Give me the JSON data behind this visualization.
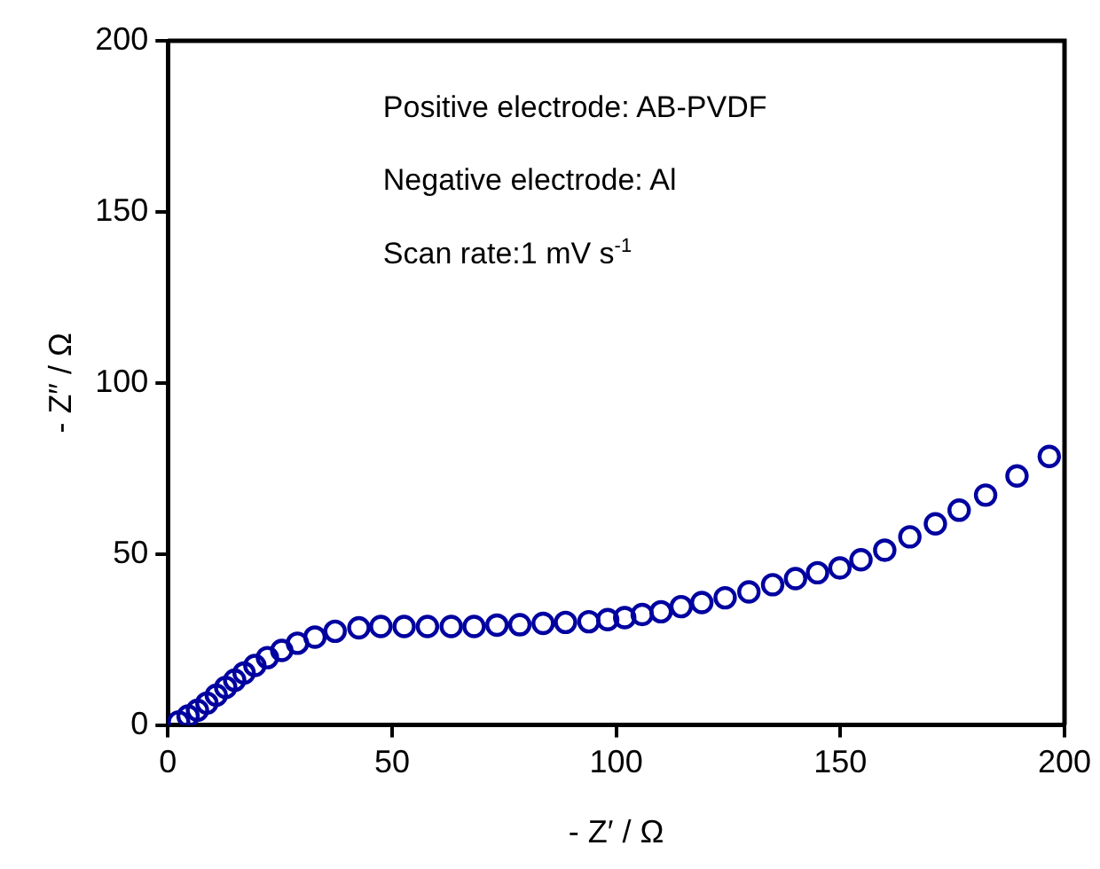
{
  "chart_data": {
    "type": "scatter",
    "xlabel": "- Z′ / Ω",
    "ylabel": "- Z″ / Ω",
    "xlim": [
      0,
      200
    ],
    "xticks": [
      0,
      50,
      100,
      150,
      200
    ],
    "ylim": [
      0,
      200
    ],
    "yticks": [
      0,
      50,
      100,
      150,
      200
    ],
    "grid": false,
    "legend": false,
    "marker": "circle",
    "annotations": [
      "Positive electrode: AB-PVDF",
      "Negative electrode: Al",
      "Scan rate:1 mV s$^{-1}$"
    ],
    "series": [
      {
        "color": "#0000a0",
        "x": [
          2.4,
          4.5,
          6.6,
          8.7,
          10.8,
          12.9,
          14.9,
          17,
          19.4,
          22.2,
          25.4,
          28.9,
          32.8,
          37.3,
          42.6,
          47.5,
          52.7,
          57.9,
          63.2,
          68.3,
          73.4,
          78.5,
          83.7,
          88.7,
          93.9,
          98.1,
          101.9,
          105.8,
          110,
          114.5,
          119.1,
          124.3,
          129.6,
          134.9,
          140,
          144.9,
          149.9,
          154.6,
          159.9,
          165.5,
          171.2,
          176.5,
          182.4,
          189.4,
          196.6
        ],
        "values": [
          0.9,
          2.6,
          4.3,
          6.4,
          8.7,
          11,
          13.1,
          15.2,
          17.4,
          19.7,
          21.8,
          23.9,
          25.7,
          27.4,
          28.4,
          28.8,
          28.8,
          28.8,
          28.8,
          28.8,
          29.2,
          29.3,
          29.7,
          30,
          30.2,
          30.8,
          31.4,
          32.3,
          33.1,
          34.6,
          35.8,
          37.2,
          38.9,
          41,
          42.8,
          44.5,
          45.9,
          48.3,
          51.1,
          55,
          58.8,
          62.8,
          67.2,
          72.8,
          78.5
        ]
      }
    ]
  }
}
